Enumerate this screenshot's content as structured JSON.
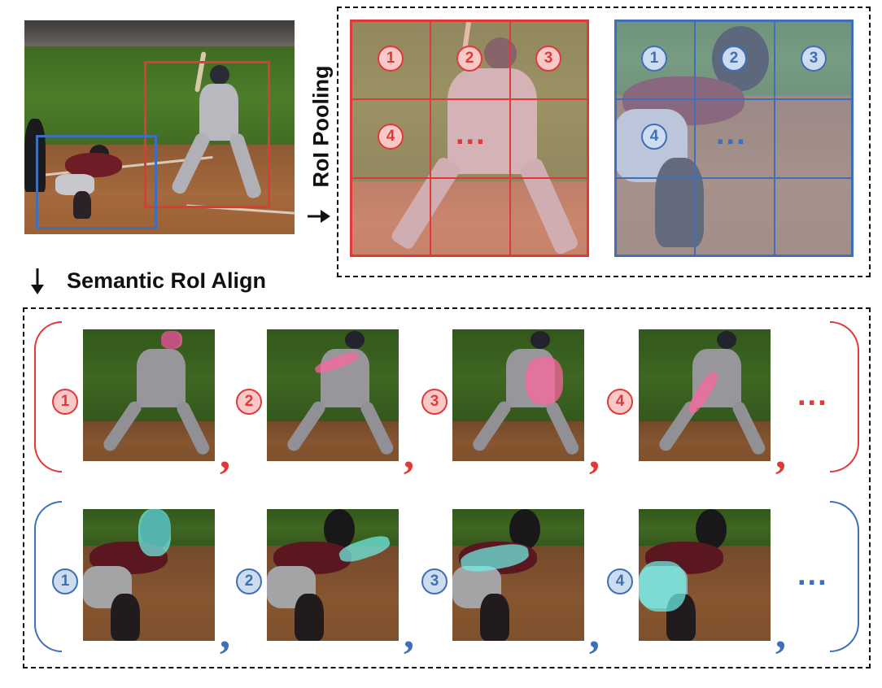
{
  "labels": {
    "roi_pooling": "RoI Pooling",
    "semantic_roi_align": "Semantic RoI Align"
  },
  "grid_numbers": [
    "1",
    "2",
    "3",
    "4"
  ],
  "grid_ellipsis": "...",
  "rows": [
    {
      "id": "batter",
      "color": "#e0393a",
      "numbers": [
        "1",
        "2",
        "3",
        "4"
      ],
      "ellipsis": "...",
      "comma": ","
    },
    {
      "id": "catcher",
      "color": "#3e6fb8",
      "numbers": [
        "1",
        "2",
        "3",
        "4"
      ],
      "ellipsis": "...",
      "comma": ","
    }
  ],
  "colors": {
    "red": "#e0393a",
    "blue": "#3e6fb8",
    "pink_mask": "#ff6fa8",
    "cyan_mask": "#6fe8e0",
    "black": "#111111"
  }
}
